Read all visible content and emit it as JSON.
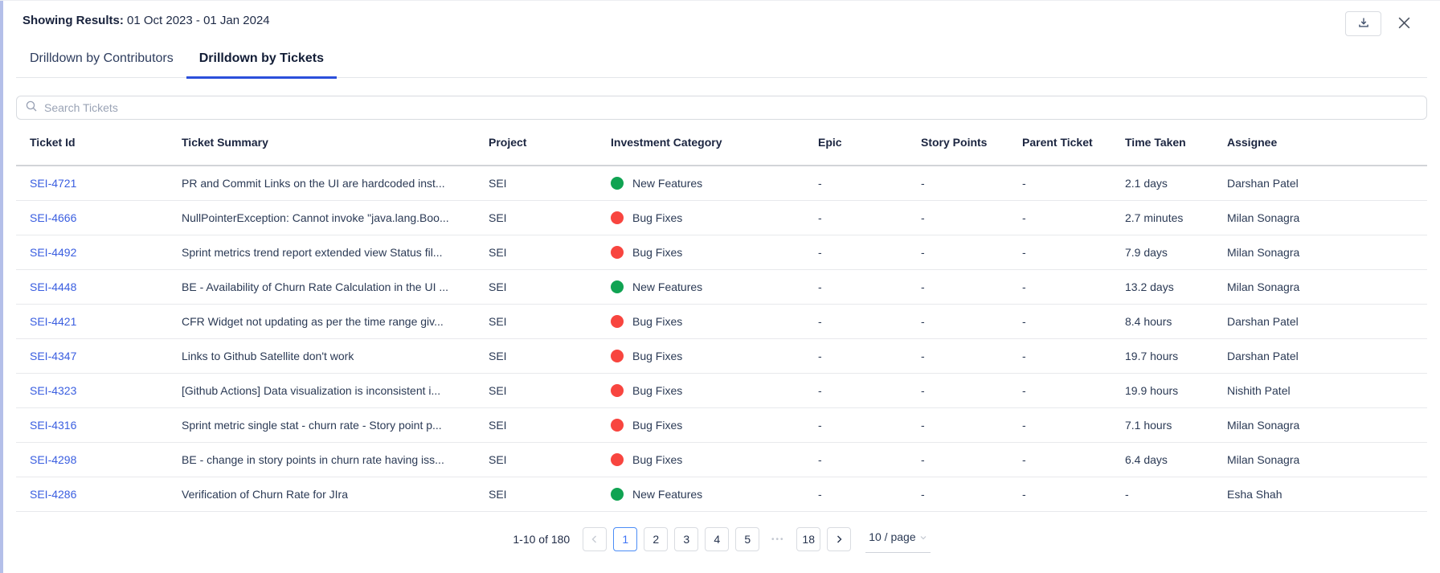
{
  "header": {
    "showing_results_label": "Showing Results:",
    "date_range": "01 Oct 2023 - 01 Jan 2024"
  },
  "tabs": [
    {
      "label": "Drilldown by Contributors",
      "active": false
    },
    {
      "label": "Drilldown by Tickets",
      "active": true
    }
  ],
  "search": {
    "placeholder": "Search Tickets"
  },
  "table": {
    "columns": [
      "Ticket Id",
      "Ticket Summary",
      "Project",
      "Investment Category",
      "Epic",
      "Story Points",
      "Parent Ticket",
      "Time Taken",
      "Assignee"
    ],
    "rows": [
      {
        "ticket_id": "SEI-4721",
        "summary": "PR and Commit Links on the UI are hardcoded inst...",
        "project": "SEI",
        "investment_category": "New Features",
        "dot_color": "#10a352",
        "epic": "-",
        "story_points": "-",
        "parent_ticket": "-",
        "time_taken": "2.1 days",
        "assignee": "Darshan Patel"
      },
      {
        "ticket_id": "SEI-4666",
        "summary": "NullPointerException: Cannot invoke \"java.lang.Boo...",
        "project": "SEI",
        "investment_category": "Bug Fixes",
        "dot_color": "#f8453f",
        "epic": "-",
        "story_points": "-",
        "parent_ticket": "-",
        "time_taken": "2.7 minutes",
        "assignee": "Milan Sonagra"
      },
      {
        "ticket_id": "SEI-4492",
        "summary": "Sprint metrics trend report extended view Status fil...",
        "project": "SEI",
        "investment_category": "Bug Fixes",
        "dot_color": "#f8453f",
        "epic": "-",
        "story_points": "-",
        "parent_ticket": "-",
        "time_taken": "7.9 days",
        "assignee": "Milan Sonagra"
      },
      {
        "ticket_id": "SEI-4448",
        "summary": "BE - Availability of Churn Rate Calculation in the UI ...",
        "project": "SEI",
        "investment_category": "New Features",
        "dot_color": "#10a352",
        "epic": "-",
        "story_points": "-",
        "parent_ticket": "-",
        "time_taken": "13.2 days",
        "assignee": "Milan Sonagra"
      },
      {
        "ticket_id": "SEI-4421",
        "summary": "CFR Widget not updating as per the time range giv...",
        "project": "SEI",
        "investment_category": "Bug Fixes",
        "dot_color": "#f8453f",
        "epic": "-",
        "story_points": "-",
        "parent_ticket": "-",
        "time_taken": "8.4 hours",
        "assignee": "Darshan Patel"
      },
      {
        "ticket_id": "SEI-4347",
        "summary": "Links to Github Satellite don't work",
        "project": "SEI",
        "investment_category": "Bug Fixes",
        "dot_color": "#f8453f",
        "epic": "-",
        "story_points": "-",
        "parent_ticket": "-",
        "time_taken": "19.7 hours",
        "assignee": "Darshan Patel"
      },
      {
        "ticket_id": "SEI-4323",
        "summary": "[Github Actions] Data visualization is inconsistent i...",
        "project": "SEI",
        "investment_category": "Bug Fixes",
        "dot_color": "#f8453f",
        "epic": "-",
        "story_points": "-",
        "parent_ticket": "-",
        "time_taken": "19.9 hours",
        "assignee": "Nishith Patel"
      },
      {
        "ticket_id": "SEI-4316",
        "summary": "Sprint metric single stat - churn rate - Story point p...",
        "project": "SEI",
        "investment_category": "Bug Fixes",
        "dot_color": "#f8453f",
        "epic": "-",
        "story_points": "-",
        "parent_ticket": "-",
        "time_taken": "7.1 hours",
        "assignee": "Milan Sonagra"
      },
      {
        "ticket_id": "SEI-4298",
        "summary": "BE - change in story points in churn rate having iss...",
        "project": "SEI",
        "investment_category": "Bug Fixes",
        "dot_color": "#f8453f",
        "epic": "-",
        "story_points": "-",
        "parent_ticket": "-",
        "time_taken": "6.4 days",
        "assignee": "Milan Sonagra"
      },
      {
        "ticket_id": "SEI-4286",
        "summary": "Verification of Churn Rate for JIra",
        "project": "SEI",
        "investment_category": "New Features",
        "dot_color": "#10a352",
        "epic": "-",
        "story_points": "-",
        "parent_ticket": "-",
        "time_taken": "-",
        "assignee": "Esha Shah"
      }
    ]
  },
  "pagination": {
    "range_text": "1-10 of 180",
    "pages": [
      "1",
      "2",
      "3",
      "4",
      "5",
      "•••",
      "18"
    ],
    "active_page": "1",
    "page_size": "10 / page"
  },
  "colors": {
    "accent_blue": "#2b4fdb",
    "link_blue": "#3a5ee0",
    "active_page_blue": "#3d73f5",
    "category_green": "#10a352",
    "category_red": "#f8453f",
    "left_strip": "#b4bfe9"
  }
}
